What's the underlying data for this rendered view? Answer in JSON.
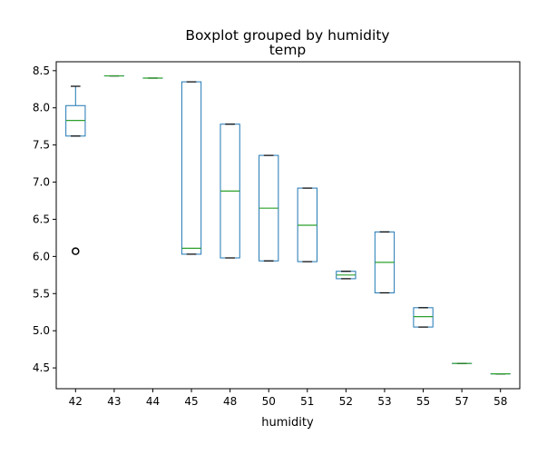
{
  "chart_data": {
    "type": "boxplot",
    "suptitle": "Boxplot grouped by humidity",
    "title": "temp",
    "xlabel": "humidity",
    "ylabel": "",
    "ylim": [
      4.22,
      8.62
    ],
    "yticks": [
      "4.5",
      "5.0",
      "5.5",
      "6.0",
      "6.5",
      "7.0",
      "7.5",
      "8.0",
      "8.5"
    ],
    "grid": false,
    "colors": {
      "box": "#1f77b4",
      "median": "#2ca02c",
      "cap": "#000000",
      "flier": "#000000"
    },
    "categories": [
      "42",
      "43",
      "44",
      "45",
      "48",
      "50",
      "51",
      "52",
      "53",
      "55",
      "57",
      "58"
    ],
    "boxes": [
      {
        "category": "42",
        "whislo": 7.62,
        "q1": 7.62,
        "med": 7.83,
        "q3": 8.03,
        "whishi": 8.29,
        "fliers": [
          6.07
        ]
      },
      {
        "category": "43",
        "whislo": 8.43,
        "q1": 8.43,
        "med": 8.43,
        "q3": 8.43,
        "whishi": 8.43,
        "fliers": []
      },
      {
        "category": "44",
        "whislo": 8.4,
        "q1": 8.4,
        "med": 8.4,
        "q3": 8.4,
        "whishi": 8.4,
        "fliers": []
      },
      {
        "category": "45",
        "whislo": 6.03,
        "q1": 6.03,
        "med": 6.11,
        "q3": 8.35,
        "whishi": 8.35,
        "fliers": []
      },
      {
        "category": "48",
        "whislo": 5.98,
        "q1": 5.98,
        "med": 6.88,
        "q3": 7.78,
        "whishi": 7.78,
        "fliers": []
      },
      {
        "category": "50",
        "whislo": 5.94,
        "q1": 5.94,
        "med": 6.65,
        "q3": 7.36,
        "whishi": 7.36,
        "fliers": []
      },
      {
        "category": "51",
        "whislo": 5.93,
        "q1": 5.93,
        "med": 6.42,
        "q3": 6.92,
        "whishi": 6.92,
        "fliers": []
      },
      {
        "category": "52",
        "whislo": 5.7,
        "q1": 5.7,
        "med": 5.75,
        "q3": 5.8,
        "whishi": 5.8,
        "fliers": []
      },
      {
        "category": "53",
        "whislo": 5.51,
        "q1": 5.51,
        "med": 5.92,
        "q3": 6.33,
        "whishi": 6.33,
        "fliers": []
      },
      {
        "category": "55",
        "whislo": 5.05,
        "q1": 5.05,
        "med": 5.19,
        "q3": 5.31,
        "whishi": 5.31,
        "fliers": []
      },
      {
        "category": "57",
        "whislo": 4.56,
        "q1": 4.56,
        "med": 4.56,
        "q3": 4.56,
        "whishi": 4.56,
        "fliers": []
      },
      {
        "category": "58",
        "whislo": 4.42,
        "q1": 4.42,
        "med": 4.42,
        "q3": 4.42,
        "whishi": 4.42,
        "fliers": []
      }
    ]
  }
}
